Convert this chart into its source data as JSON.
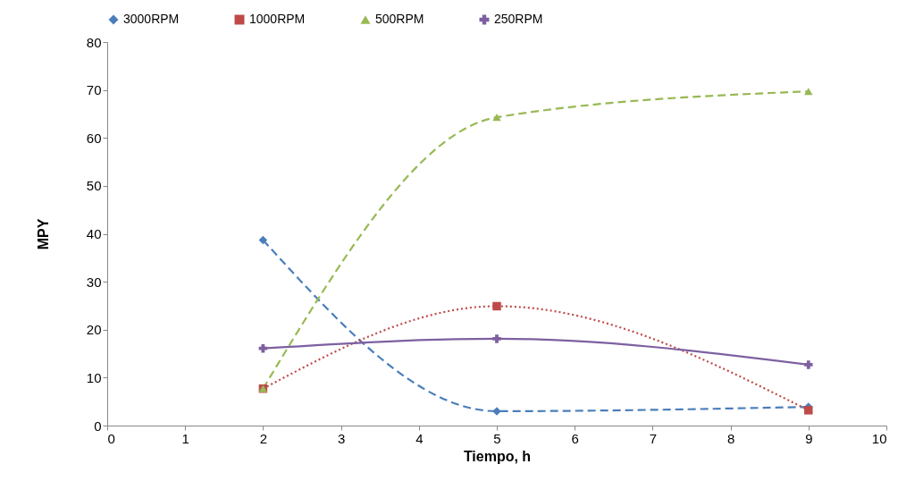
{
  "chart_data": {
    "type": "line",
    "xlabel": "Tiempo, h",
    "ylabel": "MPY",
    "x": [
      2,
      5,
      9
    ],
    "series": [
      {
        "name": "3000RPM",
        "color": "#4a7ebb",
        "values": [
          38.7,
          3.0,
          3.9
        ],
        "marker": "diamond",
        "line_style": "dashed"
      },
      {
        "name": "1000RPM",
        "color": "#be4b48",
        "values": [
          7.7,
          24.9,
          3.2
        ],
        "marker": "square",
        "line_style": "dotted"
      },
      {
        "name": "500RPM",
        "color": "#98b954",
        "values": [
          7.7,
          64.3,
          69.7
        ],
        "marker": "triangle",
        "line_style": "dashed"
      },
      {
        "name": "250RPM",
        "color": "#7d60a0",
        "values": [
          16.1,
          18.1,
          12.7
        ],
        "marker": "cross",
        "line_style": "solid"
      }
    ],
    "xlim": [
      0,
      10
    ],
    "xticks": [
      0,
      1,
      2,
      3,
      4,
      5,
      6,
      7,
      8,
      9,
      10
    ],
    "ylim": [
      0,
      80
    ],
    "yticks": [
      0,
      10,
      20,
      30,
      40,
      50,
      60,
      70,
      80
    ],
    "grid": false,
    "legend": "top"
  }
}
